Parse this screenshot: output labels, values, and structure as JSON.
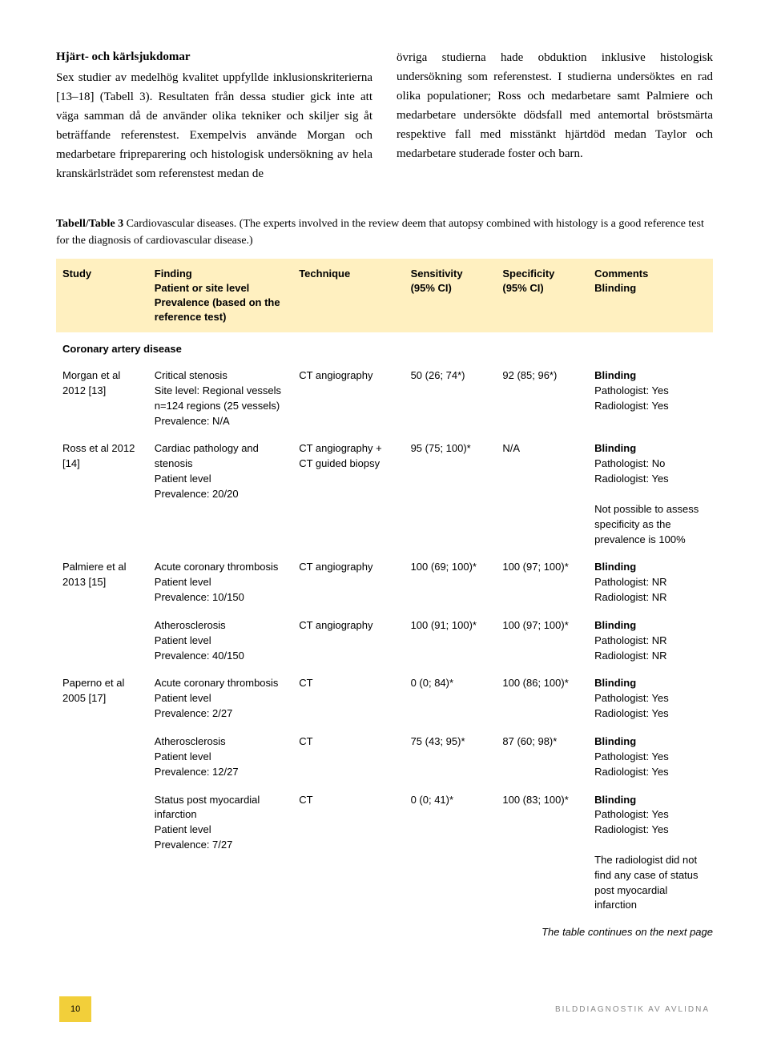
{
  "colors": {
    "header_bg": "#fff0c0",
    "page_num_bg": "#f2cf3a",
    "text": "#000000",
    "footer_text": "#888888",
    "background": "#ffffff"
  },
  "fonts": {
    "body": "Georgia serif",
    "table": "Arial sans-serif",
    "body_size_pt": 11,
    "table_size_pt": 9
  },
  "heading": "Hjärt- och kärlsjukdomar",
  "para_left": "Sex studier av medelhög kvalitet uppfyllde inklusionskriterierna [13–18] (Tabell 3). Resultaten från dessa studier gick inte att väga samman då de använder olika tekniker och skiljer sig åt beträffande referenstest. Exempelvis använde Morgan och medarbetare fripreparering och histologisk undersökning av hela kranskärlsträdet som referenstest medan de",
  "para_right": "övriga studierna hade obduktion inklusive histologisk undersökning som referenstest. I studierna undersöktes en rad olika populationer; Ross och medarbetare samt Palmiere och medarbetare undersökte dödsfall med antemortal bröstsmärta respektive fall med misstänkt hjärtdöd medan Taylor och medarbetare studerade foster och barn.",
  "table_caption_bold": "Tabell/Table 3",
  "table_caption_rest": " Cardiovascular diseases. (The experts involved in the review deem that autopsy combined with histology is a good reference test for the diagnosis of cardiovascular disease.)",
  "table": {
    "headers": {
      "study": "Study",
      "finding": "Finding\nPatient or site level\nPrevalence (based on the reference test)",
      "technique": "Technique",
      "sensitivity": "Sensitivity\n(95% CI)",
      "specificity": "Specificity\n(95% CI)",
      "comments": "Comments\nBlinding"
    },
    "section1": "Coronary artery disease",
    "rows": [
      {
        "study": "Morgan et al 2012 [13]",
        "finding": "Critical stenosis\nSite level: Regional vessels\nn=124 regions (25 vessels)\nPrevalence: N/A",
        "technique": "CT angiography",
        "sensitivity": "50 (26; 74*)",
        "specificity": "92 (85; 96*)",
        "comments": "Blinding\nPathologist: Yes\nRadiologist: Yes"
      },
      {
        "study": "Ross et al 2012 [14]",
        "finding": "Cardiac pathology and stenosis\nPatient level\nPrevalence: 20/20",
        "technique": "CT angiography + CT guided biopsy",
        "sensitivity": "95 (75; 100)*",
        "specificity": "N/A",
        "comments": "Blinding\nPathologist: No\nRadiologist: Yes\n\nNot possible to assess specificity as the prevalence is 100%"
      },
      {
        "study": "Palmiere et al 2013 [15]",
        "finding": "Acute coronary thrombosis\nPatient level\nPrevalence: 10/150",
        "technique": "CT angiography",
        "sensitivity": "100 (69; 100)*",
        "specificity": "100 (97; 100)*",
        "comments": "Blinding\nPathologist: NR\nRadiologist: NR"
      },
      {
        "study": "",
        "finding": "Atherosclerosis\nPatient level\nPrevalence: 40/150",
        "technique": "CT angiography",
        "sensitivity": "100 (91; 100)*",
        "specificity": "100 (97; 100)*",
        "comments": "Blinding\nPathologist: NR\nRadiologist: NR"
      },
      {
        "study": "Paperno et al 2005 [17]",
        "finding": "Acute coronary thrombosis\nPatient level\nPrevalence: 2/27",
        "technique": "CT",
        "sensitivity": "0 (0; 84)*",
        "specificity": "100 (86; 100)*",
        "comments": "Blinding\nPathologist: Yes\nRadiologist: Yes"
      },
      {
        "study": "",
        "finding": "Atherosclerosis\nPatient level\nPrevalence: 12/27",
        "technique": "CT",
        "sensitivity": "75 (43; 95)*",
        "specificity": "87 (60; 98)*",
        "comments": "Blinding\nPathologist: Yes\nRadiologist: Yes"
      },
      {
        "study": "",
        "finding": "Status post myocardial infarction\nPatient level\nPrevalence: 7/27",
        "technique": "CT",
        "sensitivity": "0 (0; 41)*",
        "specificity": "100 (83; 100)*",
        "comments": "Blinding\nPathologist: Yes\nRadiologist: Yes\n\nThe radiologist did not find any case of status post myocardial infarction"
      }
    ]
  },
  "continue_note": "The table continues on the next page",
  "page_number": "10",
  "footer_title": "BILDDIAGNOSTIK AV AVLIDNA"
}
